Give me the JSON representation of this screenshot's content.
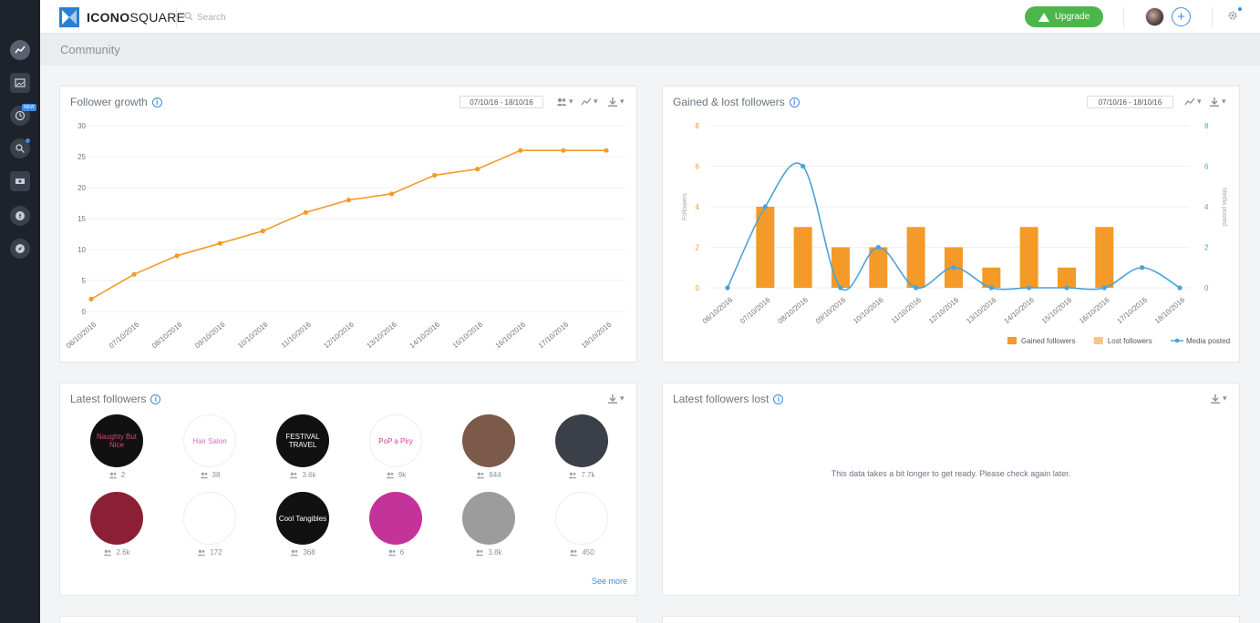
{
  "app": {
    "logo_strong": "ICONO",
    "logo_rest": "SQUARE",
    "search_placeholder": "Search",
    "upgrade_label": "Upgrade",
    "nav_new_badge": "NEW"
  },
  "page": {
    "title": "Community"
  },
  "follower_growth": {
    "title": "Follower growth",
    "date_range": "07/10/16 - 18/10/16"
  },
  "gained_lost": {
    "title": "Gained & lost followers",
    "date_range": "07/10/16 - 18/10/16"
  },
  "latest_followers": {
    "title": "Latest followers",
    "see_more": "See more",
    "items": [
      {
        "count": "2",
        "avatar_text": "Naughty But Nice",
        "bg": "#111",
        "fg": "#e0407a"
      },
      {
        "count": "38",
        "avatar_text": "Hair Salon",
        "bg": "#fff",
        "fg": "#d070c0"
      },
      {
        "count": "3.6k",
        "avatar_text": "FESTIVAL TRAVEL",
        "bg": "#111",
        "fg": "#fff"
      },
      {
        "count": "9k",
        "avatar_text": "PoP a Piry",
        "bg": "#fff",
        "fg": "#d23c96"
      },
      {
        "count": "844",
        "avatar_text": "",
        "bg": "#7b5a4a",
        "fg": "#fff"
      },
      {
        "count": "7.7k",
        "avatar_text": "",
        "bg": "#3b4048",
        "fg": "#fff"
      },
      {
        "count": "2.6k",
        "avatar_text": "",
        "bg": "#8b2035",
        "fg": "#fff"
      },
      {
        "count": "172",
        "avatar_text": "",
        "bg": "#fff",
        "fg": "#111"
      },
      {
        "count": "368",
        "avatar_text": "Cool Tangibles",
        "bg": "#111",
        "fg": "#fff"
      },
      {
        "count": "6",
        "avatar_text": "",
        "bg": "#c3339a",
        "fg": "#fff"
      },
      {
        "count": "3.8k",
        "avatar_text": "",
        "bg": "#9c9c9c",
        "fg": "#fff"
      },
      {
        "count": "450",
        "avatar_text": "",
        "bg": "#fff",
        "fg": "#1f3f7a"
      }
    ]
  },
  "latest_lost": {
    "title": "Latest followers lost",
    "message": "This data takes a bit longer to get ready. Please check again later."
  },
  "chart_data": [
    {
      "type": "line",
      "x": [
        "06/10/2016",
        "07/10/2016",
        "08/10/2016",
        "09/10/2016",
        "10/10/2016",
        "11/10/2016",
        "12/10/2016",
        "13/10/2016",
        "14/10/2016",
        "15/10/2016",
        "16/10/2016",
        "17/10/2016",
        "18/10/2016"
      ],
      "values": [
        2,
        6,
        9,
        11,
        13,
        16,
        18,
        19,
        22,
        23,
        26,
        26,
        26
      ],
      "ylim": [
        0,
        30
      ],
      "yticks": [
        0,
        5,
        10,
        15,
        20,
        25,
        30
      ],
      "color": "#f39a28",
      "grid": true
    },
    {
      "type": "bar",
      "x": [
        "06/10/2016",
        "07/10/2016",
        "08/10/2016",
        "09/10/2016",
        "10/10/2016",
        "11/10/2016",
        "12/10/2016",
        "13/10/2016",
        "14/10/2016",
        "15/10/2016",
        "16/10/2016",
        "17/10/2016",
        "18/10/2016"
      ],
      "series": [
        {
          "name": "Gained followers",
          "type": "bar",
          "axis": "left",
          "color": "#f39a28",
          "values": [
            0,
            4,
            3,
            2,
            2,
            3,
            2,
            1,
            3,
            1,
            3,
            0,
            0
          ]
        },
        {
          "name": "Lost followers",
          "type": "bar",
          "axis": "left",
          "color": "#f7c489",
          "values": [
            0,
            0,
            0,
            0,
            0,
            0,
            0,
            0,
            0,
            0,
            0,
            0,
            0
          ]
        },
        {
          "name": "Media posted",
          "type": "line",
          "axis": "right",
          "color": "#4aa3d8",
          "values": [
            0,
            4,
            6,
            0,
            2,
            0,
            1,
            0,
            0,
            0,
            0,
            1,
            0
          ]
        }
      ],
      "ylabel": "Followers",
      "y2label": "Media posted",
      "ylim": [
        0,
        8
      ],
      "y2lim": [
        0,
        8
      ],
      "yticks": [
        0,
        2,
        4,
        6,
        8
      ],
      "left_tick_color": "#f39a28",
      "right_tick_color": "#4aa3d8",
      "legend": "bottom-right"
    }
  ]
}
